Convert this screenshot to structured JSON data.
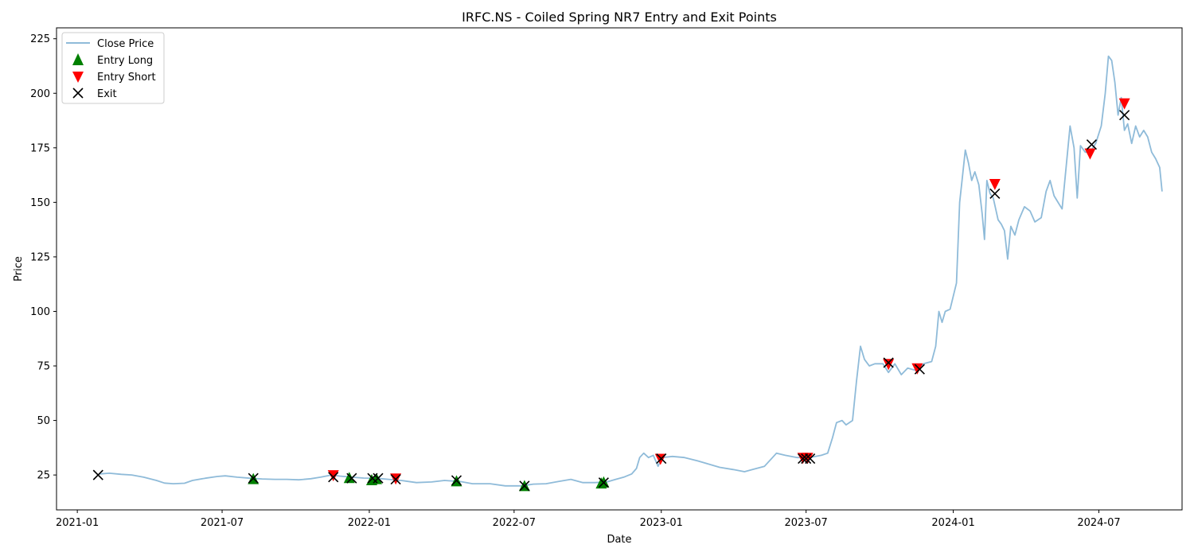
{
  "chart_data": {
    "type": "line",
    "title": "IRFC.NS - Coiled Spring NR7 Entry and Exit Points",
    "xlabel": "Date",
    "ylabel": "Price",
    "x_range": [
      "2020-12-06",
      "2024-10-13"
    ],
    "ylim": [
      9,
      230
    ],
    "grid": false,
    "legend_position": "top-left",
    "x_ticks": [
      "2021-01",
      "2021-07",
      "2022-01",
      "2022-07",
      "2023-01",
      "2023-07",
      "2024-01",
      "2024-07"
    ],
    "x_tick_dates": [
      "2021-01-01",
      "2021-07-01",
      "2022-01-01",
      "2022-07-01",
      "2023-01-01",
      "2023-07-01",
      "2024-01-01",
      "2024-07-01"
    ],
    "y_ticks": [
      25,
      50,
      75,
      100,
      125,
      150,
      175,
      200,
      225
    ],
    "series": [
      {
        "name": "Close Price",
        "kind": "line",
        "color": "#1f77b4",
        "alpha": 0.5,
        "points": [
          [
            "2021-01-29",
            25.5
          ],
          [
            "2021-02-10",
            25.8
          ],
          [
            "2021-02-25",
            25.3
          ],
          [
            "2021-03-10",
            25.0
          ],
          [
            "2021-03-25",
            24.0
          ],
          [
            "2021-04-10",
            22.5
          ],
          [
            "2021-04-20",
            21.3
          ],
          [
            "2021-05-01",
            21.0
          ],
          [
            "2021-05-15",
            21.2
          ],
          [
            "2021-05-25",
            22.5
          ],
          [
            "2021-06-10",
            23.5
          ],
          [
            "2021-06-25",
            24.3
          ],
          [
            "2021-07-05",
            24.6
          ],
          [
            "2021-07-20",
            24.0
          ],
          [
            "2021-08-05",
            23.5
          ],
          [
            "2021-08-20",
            23.2
          ],
          [
            "2021-09-05",
            23.0
          ],
          [
            "2021-09-20",
            23.0
          ],
          [
            "2021-10-05",
            22.8
          ],
          [
            "2021-10-20",
            23.3
          ],
          [
            "2021-11-01",
            24.0
          ],
          [
            "2021-11-15",
            25.0
          ],
          [
            "2021-11-25",
            24.5
          ],
          [
            "2021-12-10",
            24.0
          ],
          [
            "2021-12-25",
            23.6
          ],
          [
            "2022-01-10",
            23.5
          ],
          [
            "2022-01-25",
            23.0
          ],
          [
            "2022-02-10",
            22.5
          ],
          [
            "2022-03-01",
            21.5
          ],
          [
            "2022-03-20",
            21.8
          ],
          [
            "2022-04-05",
            22.5
          ],
          [
            "2022-04-25",
            22.0
          ],
          [
            "2022-05-10",
            21.0
          ],
          [
            "2022-06-01",
            21.0
          ],
          [
            "2022-06-20",
            20.0
          ],
          [
            "2022-07-10",
            20.0
          ],
          [
            "2022-07-25",
            20.8
          ],
          [
            "2022-08-10",
            21.0
          ],
          [
            "2022-08-25",
            22.0
          ],
          [
            "2022-09-10",
            23.0
          ],
          [
            "2022-09-25",
            21.5
          ],
          [
            "2022-10-10",
            21.5
          ],
          [
            "2022-10-25",
            21.8
          ],
          [
            "2022-11-05",
            23.0
          ],
          [
            "2022-11-15",
            24.0
          ],
          [
            "2022-11-25",
            25.5
          ],
          [
            "2022-12-01",
            28.0
          ],
          [
            "2022-12-05",
            33.0
          ],
          [
            "2022-12-10",
            35.0
          ],
          [
            "2022-12-16",
            33.0
          ],
          [
            "2022-12-22",
            34.0
          ],
          [
            "2022-12-28",
            29.0
          ],
          [
            "2023-01-02",
            33.0
          ],
          [
            "2023-01-15",
            33.5
          ],
          [
            "2023-01-30",
            33.0
          ],
          [
            "2023-02-15",
            31.5
          ],
          [
            "2023-03-01",
            30.0
          ],
          [
            "2023-03-15",
            28.5
          ],
          [
            "2023-04-01",
            27.5
          ],
          [
            "2023-04-15",
            26.5
          ],
          [
            "2023-04-25",
            27.5
          ],
          [
            "2023-05-10",
            29.0
          ],
          [
            "2023-05-20",
            33.0
          ],
          [
            "2023-05-25",
            35.0
          ],
          [
            "2023-06-05",
            34.0
          ],
          [
            "2023-06-20",
            33.0
          ],
          [
            "2023-07-05",
            33.0
          ],
          [
            "2023-07-20",
            34.0
          ],
          [
            "2023-07-28",
            35.0
          ],
          [
            "2023-08-03",
            42.0
          ],
          [
            "2023-08-08",
            49.0
          ],
          [
            "2023-08-15",
            50.0
          ],
          [
            "2023-08-20",
            48.0
          ],
          [
            "2023-08-28",
            50.0
          ],
          [
            "2023-09-02",
            68.0
          ],
          [
            "2023-09-07",
            84.0
          ],
          [
            "2023-09-12",
            78.0
          ],
          [
            "2023-09-18",
            75.0
          ],
          [
            "2023-09-25",
            76.0
          ],
          [
            "2023-10-05",
            76.0
          ],
          [
            "2023-10-12",
            72.0
          ],
          [
            "2023-10-20",
            76.0
          ],
          [
            "2023-10-28",
            71.0
          ],
          [
            "2023-11-05",
            74.0
          ],
          [
            "2023-11-15",
            73.0
          ],
          [
            "2023-11-25",
            76.0
          ],
          [
            "2023-12-05",
            77.0
          ],
          [
            "2023-12-10",
            84.0
          ],
          [
            "2023-12-14",
            100.0
          ],
          [
            "2023-12-18",
            95.0
          ],
          [
            "2023-12-22",
            100.0
          ],
          [
            "2023-12-28",
            101.0
          ],
          [
            "2024-01-05",
            113.0
          ],
          [
            "2024-01-09",
            150.0
          ],
          [
            "2024-01-12",
            160.0
          ],
          [
            "2024-01-16",
            174.0
          ],
          [
            "2024-01-20",
            168.0
          ],
          [
            "2024-01-24",
            160.0
          ],
          [
            "2024-01-28",
            164.0
          ],
          [
            "2024-02-02",
            158.0
          ],
          [
            "2024-02-06",
            145.0
          ],
          [
            "2024-02-09",
            133.0
          ],
          [
            "2024-02-12",
            160.0
          ],
          [
            "2024-02-16",
            154.0
          ],
          [
            "2024-02-20",
            152.0
          ],
          [
            "2024-02-26",
            142.0
          ],
          [
            "2024-03-01",
            140.0
          ],
          [
            "2024-03-05",
            137.0
          ],
          [
            "2024-03-09",
            124.0
          ],
          [
            "2024-03-13",
            139.0
          ],
          [
            "2024-03-18",
            135.0
          ],
          [
            "2024-03-23",
            142.0
          ],
          [
            "2024-03-30",
            148.0
          ],
          [
            "2024-04-06",
            146.0
          ],
          [
            "2024-04-12",
            141.0
          ],
          [
            "2024-04-20",
            143.0
          ],
          [
            "2024-04-26",
            155.0
          ],
          [
            "2024-05-01",
            160.0
          ],
          [
            "2024-05-06",
            153.0
          ],
          [
            "2024-05-11",
            150.0
          ],
          [
            "2024-05-16",
            147.0
          ],
          [
            "2024-05-21",
            166.0
          ],
          [
            "2024-05-26",
            185.0
          ],
          [
            "2024-05-31",
            175.0
          ],
          [
            "2024-06-04",
            152.0
          ],
          [
            "2024-06-08",
            176.0
          ],
          [
            "2024-06-14",
            173.0
          ],
          [
            "2024-06-20",
            173.0
          ],
          [
            "2024-06-27",
            177.0
          ],
          [
            "2024-07-04",
            185.0
          ],
          [
            "2024-07-09",
            200.0
          ],
          [
            "2024-07-13",
            217.0
          ],
          [
            "2024-07-17",
            215.0
          ],
          [
            "2024-07-21",
            205.0
          ],
          [
            "2024-07-25",
            190.0
          ],
          [
            "2024-07-29",
            198.0
          ],
          [
            "2024-08-02",
            183.0
          ],
          [
            "2024-08-06",
            186.0
          ],
          [
            "2024-08-11",
            177.0
          ],
          [
            "2024-08-16",
            185.0
          ],
          [
            "2024-08-21",
            180.0
          ],
          [
            "2024-08-26",
            183.0
          ],
          [
            "2024-08-31",
            180.0
          ],
          [
            "2024-09-05",
            173.0
          ],
          [
            "2024-09-10",
            170.0
          ],
          [
            "2024-09-15",
            166.0
          ],
          [
            "2024-09-18",
            155.0
          ]
        ]
      },
      {
        "name": "Entry Long",
        "kind": "marker",
        "marker": "triangle-up",
        "color": "#008000",
        "points": [
          [
            "2021-08-09",
            23.0
          ],
          [
            "2021-12-07",
            23.5
          ],
          [
            "2022-01-04",
            22.5
          ],
          [
            "2022-01-10",
            23.0
          ],
          [
            "2022-04-20",
            22.0
          ],
          [
            "2022-07-14",
            19.8
          ],
          [
            "2022-10-18",
            21.0
          ],
          [
            "2022-10-21",
            21.5
          ]
        ]
      },
      {
        "name": "Entry Short",
        "kind": "marker",
        "marker": "triangle-down",
        "color": "#ff0000",
        "points": [
          [
            "2021-11-17",
            25.0
          ],
          [
            "2022-02-03",
            23.5
          ],
          [
            "2022-12-31",
            32.5
          ],
          [
            "2023-06-27",
            33.0
          ],
          [
            "2023-07-03",
            33.0
          ],
          [
            "2023-10-12",
            76.0
          ],
          [
            "2023-11-17",
            74.0
          ],
          [
            "2024-02-22",
            158.5
          ],
          [
            "2024-06-20",
            172.5
          ],
          [
            "2024-08-02",
            195.5
          ]
        ]
      },
      {
        "name": "Exit",
        "kind": "marker",
        "marker": "x",
        "color": "#000000",
        "points": [
          [
            "2021-01-27",
            25.0
          ],
          [
            "2021-08-09",
            23.5
          ],
          [
            "2021-11-17",
            24.0
          ],
          [
            "2021-12-10",
            23.5
          ],
          [
            "2022-01-05",
            23.5
          ],
          [
            "2022-01-12",
            23.5
          ],
          [
            "2022-02-03",
            23.0
          ],
          [
            "2022-04-20",
            22.5
          ],
          [
            "2022-07-14",
            20.0
          ],
          [
            "2022-10-21",
            21.5
          ],
          [
            "2023-01-01",
            32.5
          ],
          [
            "2023-06-27",
            32.5
          ],
          [
            "2023-07-01",
            32.5
          ],
          [
            "2023-07-06",
            32.5
          ],
          [
            "2023-10-12",
            76.5
          ],
          [
            "2023-11-20",
            73.5
          ],
          [
            "2024-02-22",
            154.0
          ],
          [
            "2024-06-22",
            176.5
          ],
          [
            "2024-08-02",
            190.0
          ]
        ]
      }
    ]
  }
}
